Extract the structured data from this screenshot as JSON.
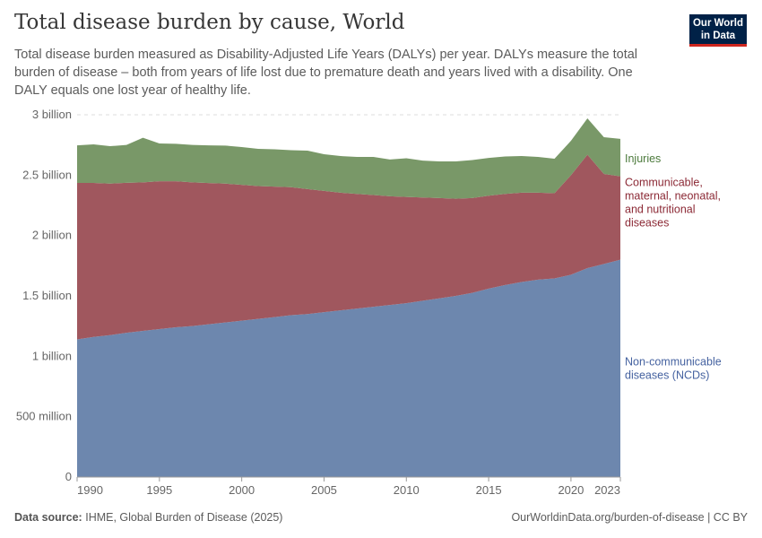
{
  "header": {
    "title": "Total disease burden by cause, World",
    "subtitle": "Total disease burden measured as Disability-Adjusted Life Years (DALYs) per year. DALYs measure the total burden of disease – both from years of life lost due to premature death and years lived with a disability. One DALY equals one lost year of healthy life.",
    "logo": "Our World in Data"
  },
  "footer": {
    "source_label": "Data source:",
    "source": "IHME, Global Burden of Disease (2025)",
    "link": "OurWorldinData.org/burden-of-disease | CC BY"
  },
  "chart_data": {
    "type": "area",
    "stacked": true,
    "ylim": [
      0,
      3000000000
    ],
    "grid": true,
    "legend": "right",
    "yticks": [
      {
        "v": 0,
        "label": "0"
      },
      {
        "v": 500000000,
        "label": "500 million"
      },
      {
        "v": 1000000000,
        "label": "1 billion"
      },
      {
        "v": 1500000000,
        "label": "1.5 billion"
      },
      {
        "v": 2000000000,
        "label": "2 billion"
      },
      {
        "v": 2500000000,
        "label": "2.5 billion"
      },
      {
        "v": 3000000000,
        "label": "3 billion"
      }
    ],
    "xticks": [
      "1990",
      "1995",
      "2000",
      "2005",
      "2010",
      "2015",
      "2020",
      "2023"
    ],
    "x": [
      1990,
      1991,
      1992,
      1993,
      1994,
      1995,
      1996,
      1997,
      1998,
      1999,
      2000,
      2001,
      2002,
      2003,
      2004,
      2005,
      2006,
      2007,
      2008,
      2009,
      2010,
      2011,
      2012,
      2013,
      2014,
      2015,
      2016,
      2017,
      2018,
      2019,
      2020,
      2021,
      2022,
      2023
    ],
    "series": [
      {
        "name": "Non-communicable diseases (NCDs)",
        "color": "#6d87ae",
        "label_color": "#4562a0",
        "values_billions": [
          1.14,
          1.16,
          1.175,
          1.195,
          1.21,
          1.225,
          1.24,
          1.25,
          1.265,
          1.28,
          1.295,
          1.31,
          1.325,
          1.34,
          1.35,
          1.365,
          1.38,
          1.395,
          1.41,
          1.425,
          1.44,
          1.46,
          1.48,
          1.5,
          1.525,
          1.56,
          1.59,
          1.615,
          1.635,
          1.645,
          1.675,
          1.73,
          1.765,
          1.8
        ]
      },
      {
        "name": "Communicable, maternal, neonatal, and nutritional diseases",
        "color": "#a0575e",
        "label_color": "#8c2a36",
        "values_billions": [
          1.296,
          1.276,
          1.255,
          1.242,
          1.23,
          1.225,
          1.21,
          1.19,
          1.17,
          1.15,
          1.125,
          1.1,
          1.08,
          1.06,
          1.035,
          1.005,
          0.975,
          0.95,
          0.925,
          0.9,
          0.88,
          0.855,
          0.83,
          0.805,
          0.785,
          0.77,
          0.755,
          0.74,
          0.72,
          0.705,
          0.825,
          0.94,
          0.745,
          0.69
        ]
      },
      {
        "name": "Injuries",
        "color": "#799868",
        "label_color": "#4c7a3c",
        "values_billions": [
          0.311,
          0.319,
          0.31,
          0.313,
          0.37,
          0.312,
          0.31,
          0.31,
          0.312,
          0.315,
          0.313,
          0.308,
          0.309,
          0.307,
          0.318,
          0.303,
          0.303,
          0.306,
          0.316,
          0.305,
          0.32,
          0.305,
          0.304,
          0.309,
          0.315,
          0.313,
          0.31,
          0.303,
          0.296,
          0.286,
          0.285,
          0.3,
          0.304,
          0.31
        ]
      }
    ],
    "legend_lines": [
      [
        "Non-communicable",
        "diseases (NCDs)"
      ],
      [
        "Communicable,",
        "maternal, neonatal,",
        "and nutritional",
        "diseases"
      ],
      [
        "Injuries"
      ]
    ]
  }
}
